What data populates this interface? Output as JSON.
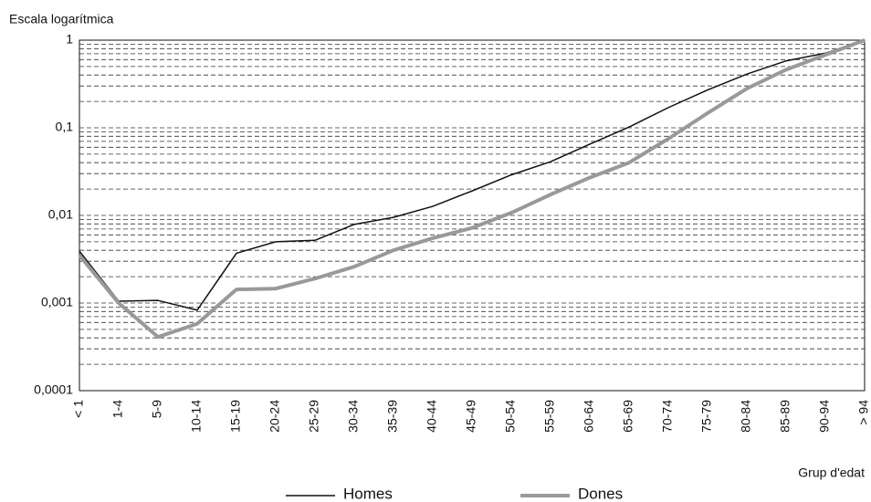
{
  "chart_data": {
    "type": "line",
    "y_title": "Escala logarítmica",
    "x_title": "Grup d'edat",
    "categories": [
      "< 1",
      "1-4",
      "5-9",
      "10-14",
      "15-19",
      "20-24",
      "25-29",
      "30-34",
      "35-39",
      "40-44",
      "45-49",
      "50-54",
      "55-59",
      "60-64",
      "65-69",
      "70-74",
      "75-79",
      "80-84",
      "85-89",
      "90-94",
      "> 94"
    ],
    "series": [
      {
        "name": "Homes",
        "color": "#111111",
        "width": 1.5,
        "values": [
          0.0039,
          0.00105,
          0.00107,
          0.00083,
          0.0037,
          0.005,
          0.0052,
          0.0079,
          0.0095,
          0.0127,
          0.019,
          0.029,
          0.041,
          0.065,
          0.102,
          0.17,
          0.27,
          0.41,
          0.58,
          0.71,
          1
        ]
      },
      {
        "name": "Dones",
        "color": "#999999",
        "width": 4,
        "values": [
          0.0035,
          0.001,
          0.00041,
          0.00058,
          0.00143,
          0.00146,
          0.0019,
          0.0026,
          0.004,
          0.0055,
          0.0072,
          0.0107,
          0.0173,
          0.027,
          0.04,
          0.075,
          0.147,
          0.28,
          0.46,
          0.68,
          1
        ]
      }
    ],
    "log_scale": true,
    "ylim": [
      0.0001,
      1
    ],
    "yticks": [
      {
        "value": 0.0001,
        "label": "0,0001"
      },
      {
        "value": 0.001,
        "label": "0,001"
      },
      {
        "value": 0.01,
        "label": "0,01"
      },
      {
        "value": 0.1,
        "label": "0,1"
      },
      1
    ],
    "yminor_ticks": [
      0.0002,
      0.0003,
      0.0004,
      0.0005,
      0.0006,
      0.0007,
      0.0008,
      0.0009,
      0.002,
      0.003,
      0.004,
      0.005,
      0.006,
      0.007,
      0.008,
      0.009,
      0.02,
      0.03,
      0.04,
      0.05,
      0.06,
      0.07,
      0.08,
      0.09,
      0.2,
      0.3,
      0.4,
      0.5,
      0.6,
      0.7,
      0.8,
      0.9
    ],
    "grid": true,
    "legend": "bottom"
  }
}
